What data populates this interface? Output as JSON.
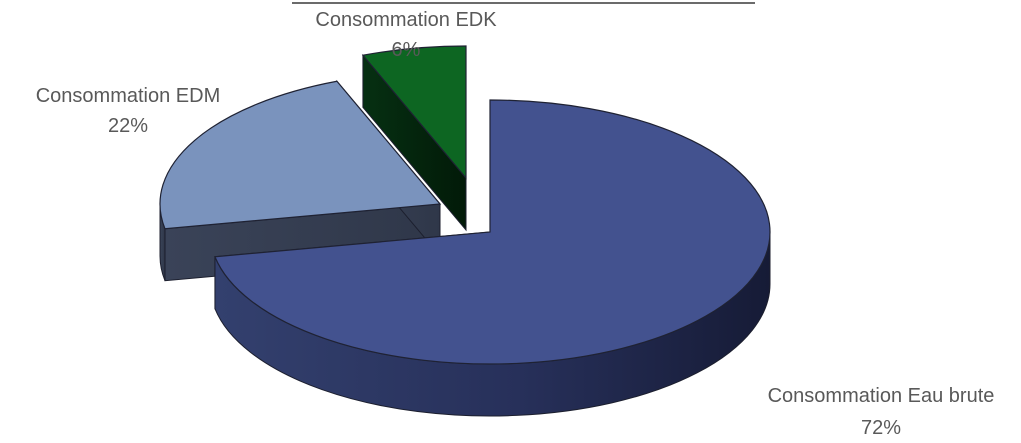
{
  "chart_data": {
    "type": "pie",
    "title": "",
    "style": "3d-exploded",
    "slices": [
      {
        "label": "Consommation Eau brute",
        "value": 72,
        "value_label": "72%",
        "color": "#43528f",
        "exploded": false
      },
      {
        "label": "Consommation EDM",
        "value": 22,
        "value_label": "22%",
        "color": "#7a93bd",
        "exploded": true
      },
      {
        "label": "Consommation EDK",
        "value": 6,
        "value_label": "6%",
        "color": "#0d6622",
        "exploded": true
      }
    ]
  }
}
